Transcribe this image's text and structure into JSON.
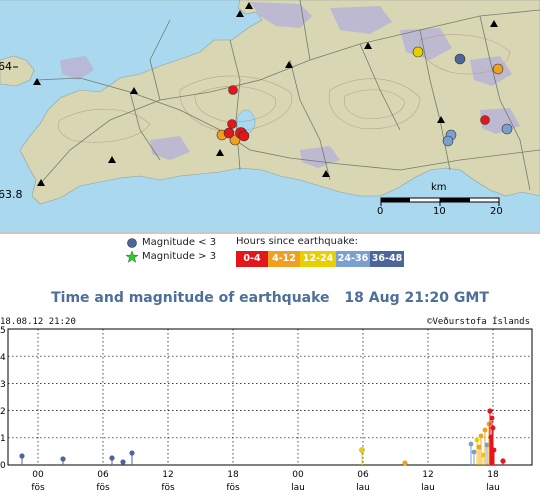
{
  "map": {
    "lat_top_label": "64",
    "lat_bottom_label": "63.8",
    "scale_unit": "km",
    "scale_ticks": [
      "0",
      "10",
      "20"
    ],
    "colors": {
      "sea": "#a9d8ef",
      "land": "#d8d6b3",
      "lava": "#b9b6d4",
      "road": "#607060"
    }
  },
  "legend": {
    "mag_small": "Magnitude < 3",
    "mag_large": "Magnitude > 3",
    "hours_title": "Hours since earthquake:",
    "hours": [
      {
        "label": "0-4",
        "color": "#e2161b"
      },
      {
        "label": "4-12",
        "color": "#f0a020"
      },
      {
        "label": "12-24",
        "color": "#e8d000"
      },
      {
        "label": "24-36",
        "color": "#7aa0d0"
      },
      {
        "label": "36-48",
        "color": "#4d6699"
      }
    ]
  },
  "plot": {
    "title": "Time and magnitude of earthquake",
    "timestamp": "18 Aug 21:20 GMT",
    "header_left": "18.08.12 21:20",
    "header_right": "©Veðurstofa Íslands",
    "y_ticks": [
      "0",
      "1",
      "2",
      "3",
      "4",
      "5"
    ],
    "x_ticks": [
      {
        "hour": "00",
        "day": "fös"
      },
      {
        "hour": "06",
        "day": "fös"
      },
      {
        "hour": "12",
        "day": "fös"
      },
      {
        "hour": "18",
        "day": "fös"
      },
      {
        "hour": "00",
        "day": "lau"
      },
      {
        "hour": "06",
        "day": "lau"
      },
      {
        "hour": "12",
        "day": "lau"
      },
      {
        "hour": "18",
        "day": "lau"
      }
    ]
  }
}
